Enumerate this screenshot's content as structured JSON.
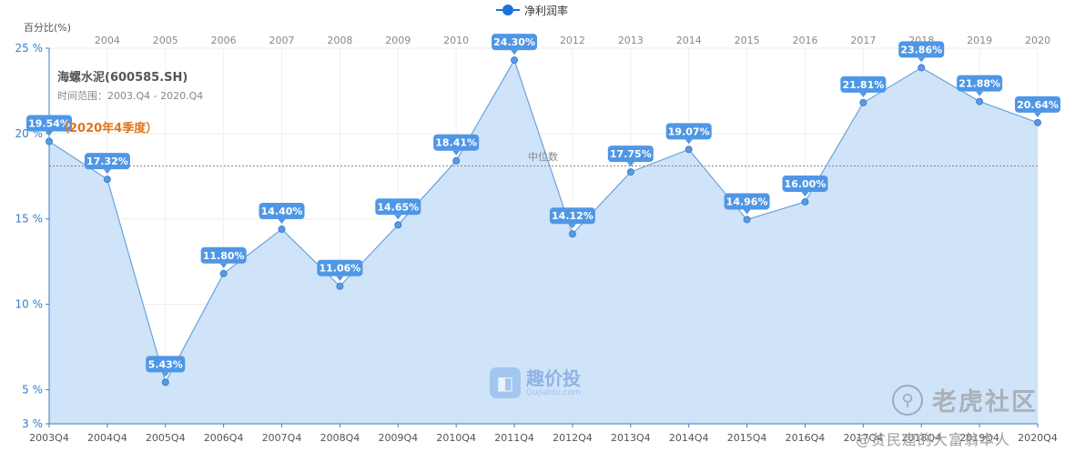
{
  "legend": {
    "series_label": "净利润率"
  },
  "y_axis_title": "百分比(%)",
  "company": "海螺水泥(600585.SH)",
  "time_range": "时间范围：2003.Q4 - 2020.Q4",
  "quarter_note": "（2020年4季度）",
  "median_label": "中位数",
  "logo": {
    "name": "趣价投",
    "sub": "Qujiatou.com"
  },
  "watermark": {
    "brand": "老虎社区",
    "author": "@贫民窟的大富翁本人"
  },
  "colors": {
    "line": "#6aa3dc",
    "area": "#cfe3f9",
    "label_bg": "#4f97e6",
    "point": "#5a9ae0",
    "median": "#888888"
  },
  "chart_data": {
    "type": "area",
    "x": [
      "2003Q4",
      "2004Q4",
      "2005Q4",
      "2006Q4",
      "2007Q4",
      "2008Q4",
      "2009Q4",
      "2010Q4",
      "2011Q4",
      "2012Q4",
      "2013Q4",
      "2014Q4",
      "2015Q4",
      "2016Q4",
      "2017Q4",
      "2018Q4",
      "2019Q4",
      "2020Q4"
    ],
    "top_axis": [
      "",
      "2004",
      "2005",
      "2006",
      "2007",
      "2008",
      "2009",
      "2010",
      "2011",
      "2012",
      "2013",
      "2014",
      "2015",
      "2016",
      "2017",
      "2018",
      "2019",
      "2020"
    ],
    "series": [
      {
        "name": "净利润率",
        "values": [
          19.54,
          17.32,
          5.43,
          11.8,
          14.4,
          11.06,
          14.65,
          18.41,
          24.3,
          14.12,
          17.75,
          19.07,
          14.96,
          16.0,
          21.81,
          23.86,
          21.88,
          20.64
        ],
        "labels": [
          "19.54%",
          "17.32%",
          "5.43%",
          "11.80%",
          "14.40%",
          "11.06%",
          "14.65%",
          "18.41%",
          "24.30%",
          "14.12%",
          "17.75%",
          "19.07%",
          "14.96%",
          "16.00%",
          "21.81%",
          "23.86%",
          "21.88%",
          "20.64%"
        ]
      }
    ],
    "median": 18.1,
    "ylim": [
      3,
      25
    ],
    "yticks": [
      3,
      5,
      10,
      15,
      20,
      25
    ],
    "ytick_labels": [
      "3 %",
      "5 %",
      "10 %",
      "15 %",
      "20 %",
      "25 %"
    ],
    "grid": true,
    "legend_position": "top-center"
  }
}
